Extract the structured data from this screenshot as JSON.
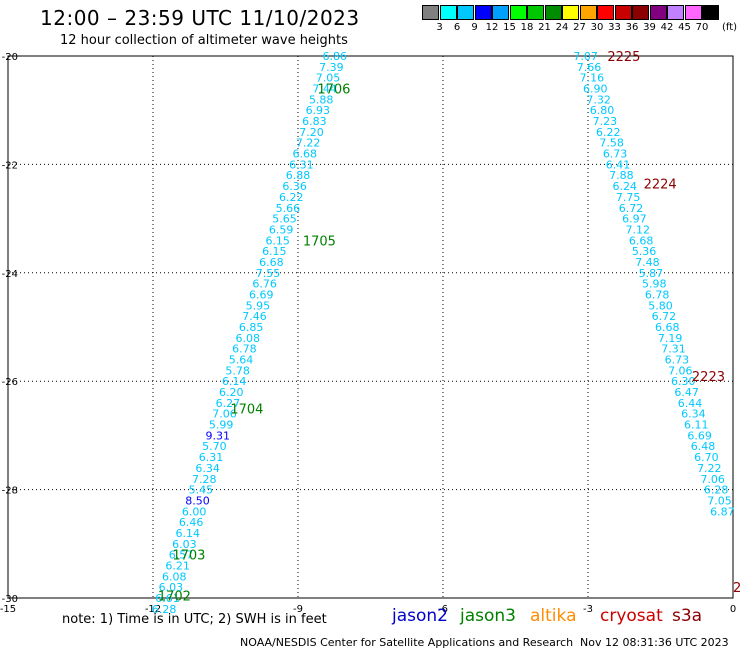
{
  "header": {
    "title": "12:00 – 23:59 UTC 11/10/2023",
    "subtitle": "12 hour collection of altimeter wave heights"
  },
  "color_scale": {
    "ticks": [
      "3",
      "6",
      "9",
      "12",
      "15",
      "18",
      "21",
      "24",
      "27",
      "30",
      "33",
      "36",
      "39",
      "42",
      "45",
      "70"
    ],
    "unit": "(ft)",
    "colors": [
      "#808080",
      "#00ffff",
      "#00c8ff",
      "#0000ff",
      "#00a0ff",
      "#00ff00",
      "#00c800",
      "#008c00",
      "#ffff00",
      "#ffa500",
      "#ff0000",
      "#c80000",
      "#8b0000",
      "#800080",
      "#c080ff",
      "#ff66ff",
      "#000000"
    ]
  },
  "note": "note: 1) Time is in UTC; 2) SWH is in feet",
  "legend": [
    {
      "name": "jason2",
      "color": "#0000cc"
    },
    {
      "name": "jason3",
      "color": "#008000"
    },
    {
      "name": "altika",
      "color": "#ff8c00"
    },
    {
      "name": "cryosat",
      "color": "#cc0000"
    },
    {
      "name": "s3a",
      "color": "#8b0000"
    }
  ],
  "footer": {
    "left": "NOAA/NESDIS Center for Satellite Applications and Research",
    "right": "Nov 12 08:31:36 UTC 2023"
  },
  "chart_data": {
    "type": "scatter",
    "title": "12:00 – 23:59 UTC 11/10/2023",
    "xlabel": "",
    "ylabel": "",
    "xlim": [
      -15,
      0
    ],
    "ylim": [
      -30,
      -20
    ],
    "x_ticks": [
      "-15",
      "-12",
      "-9",
      "-6",
      "-3",
      "0"
    ],
    "y_ticks": [
      "-20",
      "-22",
      "-24",
      "-26",
      "-28",
      "-30"
    ],
    "grid": true,
    "colors": {
      "light": "#00c8ff",
      "mid": "#00a0ff",
      "dark": "#0000ff",
      "jason3": "#008000",
      "s3a": "#8b0000"
    },
    "tracks": [
      {
        "pass_labels": [
          {
            "text": "1706",
            "x": -8.6,
            "y": -20.6,
            "color": "jason3"
          },
          {
            "text": "1705",
            "x": -8.9,
            "y": -23.4,
            "color": "jason3"
          },
          {
            "text": "1704",
            "x": -10.4,
            "y": -26.5,
            "color": "jason3"
          },
          {
            "text": "1703",
            "x": -11.6,
            "y": -29.2,
            "color": "jason3"
          },
          {
            "text": "1702",
            "x": -11.9,
            "y": -29.95,
            "color": "jason3"
          }
        ],
        "points": [
          {
            "x": -8.24,
            "y": -20.0,
            "v": "6.86"
          },
          {
            "x": -8.31,
            "y": -20.2,
            "v": "7.39"
          },
          {
            "x": -8.38,
            "y": -20.4,
            "v": "7.05"
          },
          {
            "x": -8.45,
            "y": -20.6,
            "v": "7.44"
          },
          {
            "x": -8.52,
            "y": -20.8,
            "v": "5.88"
          },
          {
            "x": -8.59,
            "y": -21.0,
            "v": "6.93"
          },
          {
            "x": -8.66,
            "y": -21.2,
            "v": "6.83"
          },
          {
            "x": -8.72,
            "y": -21.4,
            "v": "7.20"
          },
          {
            "x": -8.79,
            "y": -21.6,
            "v": "7.22"
          },
          {
            "x": -8.86,
            "y": -21.8,
            "v": "6.68"
          },
          {
            "x": -8.93,
            "y": -22.0,
            "v": "6.31"
          },
          {
            "x": -9.0,
            "y": -22.2,
            "v": "6.88"
          },
          {
            "x": -9.07,
            "y": -22.4,
            "v": "6.36"
          },
          {
            "x": -9.14,
            "y": -22.6,
            "v": "6.22"
          },
          {
            "x": -9.21,
            "y": -22.8,
            "v": "5.66"
          },
          {
            "x": -9.28,
            "y": -23.0,
            "v": "5.65"
          },
          {
            "x": -9.35,
            "y": -23.2,
            "v": "6.59"
          },
          {
            "x": -9.42,
            "y": -23.4,
            "v": "6.15"
          },
          {
            "x": -9.49,
            "y": -23.6,
            "v": "6.15"
          },
          {
            "x": -9.55,
            "y": -23.8,
            "v": "6.68"
          },
          {
            "x": -9.62,
            "y": -24.0,
            "v": "7.55"
          },
          {
            "x": -9.69,
            "y": -24.2,
            "v": "6.76"
          },
          {
            "x": -9.76,
            "y": -24.4,
            "v": "6.69"
          },
          {
            "x": -9.83,
            "y": -24.6,
            "v": "5.95"
          },
          {
            "x": -9.9,
            "y": -24.8,
            "v": "7.46"
          },
          {
            "x": -9.97,
            "y": -25.0,
            "v": "6.85"
          },
          {
            "x": -10.04,
            "y": -25.2,
            "v": "6.08"
          },
          {
            "x": -10.11,
            "y": -25.4,
            "v": "6.78"
          },
          {
            "x": -10.18,
            "y": -25.6,
            "v": "5.64"
          },
          {
            "x": -10.25,
            "y": -25.8,
            "v": "5.78"
          },
          {
            "x": -10.32,
            "y": -26.0,
            "v": "6.14"
          },
          {
            "x": -10.38,
            "y": -26.2,
            "v": "6.20"
          },
          {
            "x": -10.45,
            "y": -26.4,
            "v": "6.27"
          },
          {
            "x": -10.52,
            "y": -26.6,
            "v": "7.06"
          },
          {
            "x": -10.59,
            "y": -26.8,
            "v": "5.99"
          },
          {
            "x": -10.66,
            "y": -27.0,
            "v": "9.31",
            "tone": "dark"
          },
          {
            "x": -10.73,
            "y": -27.2,
            "v": "5.70"
          },
          {
            "x": -10.8,
            "y": -27.4,
            "v": "6.31"
          },
          {
            "x": -10.87,
            "y": -27.6,
            "v": "6.34"
          },
          {
            "x": -10.94,
            "y": -27.8,
            "v": "7.28"
          },
          {
            "x": -11.01,
            "y": -28.0,
            "v": "5.45"
          },
          {
            "x": -11.08,
            "y": -28.2,
            "v": "8.50",
            "tone": "dark"
          },
          {
            "x": -11.15,
            "y": -28.4,
            "v": "6.00"
          },
          {
            "x": -11.21,
            "y": -28.6,
            "v": "6.46"
          },
          {
            "x": -11.28,
            "y": -28.8,
            "v": "6.14"
          },
          {
            "x": -11.35,
            "y": -29.0,
            "v": "6.03"
          },
          {
            "x": -11.42,
            "y": -29.2,
            "v": "6.57"
          },
          {
            "x": -11.49,
            "y": -29.4,
            "v": "6.21"
          },
          {
            "x": -11.56,
            "y": -29.6,
            "v": "6.08"
          },
          {
            "x": -11.63,
            "y": -29.8,
            "v": "6.03"
          },
          {
            "x": -11.7,
            "y": -30.0,
            "v": "6.61"
          },
          {
            "x": -11.77,
            "y": -30.2,
            "v": "6.28"
          }
        ]
      },
      {
        "pass_labels": [
          {
            "text": "2225",
            "x": -2.6,
            "y": -20.0,
            "color": "s3a"
          },
          {
            "text": "2224",
            "x": -1.85,
            "y": -22.35,
            "color": "s3a"
          },
          {
            "text": "2223",
            "x": -0.85,
            "y": -25.9,
            "color": "s3a"
          },
          {
            "text": "2",
            "x": 0.0,
            "y": -29.8,
            "color": "s3a"
          }
        ],
        "points": [
          {
            "x": -3.05,
            "y": -20.0,
            "v": "7.07"
          },
          {
            "x": -2.98,
            "y": -20.2,
            "v": "7.66"
          },
          {
            "x": -2.92,
            "y": -20.4,
            "v": "7.16"
          },
          {
            "x": -2.85,
            "y": -20.6,
            "v": "6.90"
          },
          {
            "x": -2.78,
            "y": -20.8,
            "v": "7.32"
          },
          {
            "x": -2.71,
            "y": -21.0,
            "v": "6.80"
          },
          {
            "x": -2.65,
            "y": -21.2,
            "v": "7.23"
          },
          {
            "x": -2.58,
            "y": -21.4,
            "v": "6.22"
          },
          {
            "x": -2.51,
            "y": -21.6,
            "v": "7.58"
          },
          {
            "x": -2.44,
            "y": -21.8,
            "v": "6.73"
          },
          {
            "x": -2.38,
            "y": -22.0,
            "v": "6.41"
          },
          {
            "x": -2.31,
            "y": -22.2,
            "v": "7.88"
          },
          {
            "x": -2.24,
            "y": -22.4,
            "v": "6.24"
          },
          {
            "x": -2.17,
            "y": -22.6,
            "v": "7.75"
          },
          {
            "x": -2.11,
            "y": -22.8,
            "v": "6.72"
          },
          {
            "x": -2.04,
            "y": -23.0,
            "v": "6.97"
          },
          {
            "x": -1.97,
            "y": -23.2,
            "v": "7.12"
          },
          {
            "x": -1.9,
            "y": -23.4,
            "v": "6.68"
          },
          {
            "x": -1.84,
            "y": -23.6,
            "v": "5.36"
          },
          {
            "x": -1.77,
            "y": -23.8,
            "v": "7.48"
          },
          {
            "x": -1.7,
            "y": -24.0,
            "v": "5.87"
          },
          {
            "x": -1.63,
            "y": -24.2,
            "v": "5.98"
          },
          {
            "x": -1.57,
            "y": -24.4,
            "v": "6.78"
          },
          {
            "x": -1.5,
            "y": -24.6,
            "v": "5.80"
          },
          {
            "x": -1.43,
            "y": -24.8,
            "v": "6.72"
          },
          {
            "x": -1.36,
            "y": -25.0,
            "v": "6.68"
          },
          {
            "x": -1.3,
            "y": -25.2,
            "v": "7.19"
          },
          {
            "x": -1.23,
            "y": -25.4,
            "v": "7.31"
          },
          {
            "x": -1.16,
            "y": -25.6,
            "v": "6.73"
          },
          {
            "x": -1.09,
            "y": -25.8,
            "v": "7.06"
          },
          {
            "x": -1.03,
            "y": -26.0,
            "v": "6.30"
          },
          {
            "x": -0.96,
            "y": -26.2,
            "v": "6.47"
          },
          {
            "x": -0.89,
            "y": -26.4,
            "v": "6.44"
          },
          {
            "x": -0.82,
            "y": -26.6,
            "v": "6.34"
          },
          {
            "x": -0.76,
            "y": -26.8,
            "v": "6.11"
          },
          {
            "x": -0.69,
            "y": -27.0,
            "v": "6.69"
          },
          {
            "x": -0.62,
            "y": -27.2,
            "v": "6.48"
          },
          {
            "x": -0.55,
            "y": -27.4,
            "v": "6.70"
          },
          {
            "x": -0.49,
            "y": -27.6,
            "v": "7.22"
          },
          {
            "x": -0.42,
            "y": -27.8,
            "v": "7.06"
          },
          {
            "x": -0.35,
            "y": -28.0,
            "v": "6.28"
          },
          {
            "x": -0.28,
            "y": -28.2,
            "v": "7.05"
          },
          {
            "x": -0.22,
            "y": -28.4,
            "v": "6.87"
          }
        ]
      }
    ]
  }
}
